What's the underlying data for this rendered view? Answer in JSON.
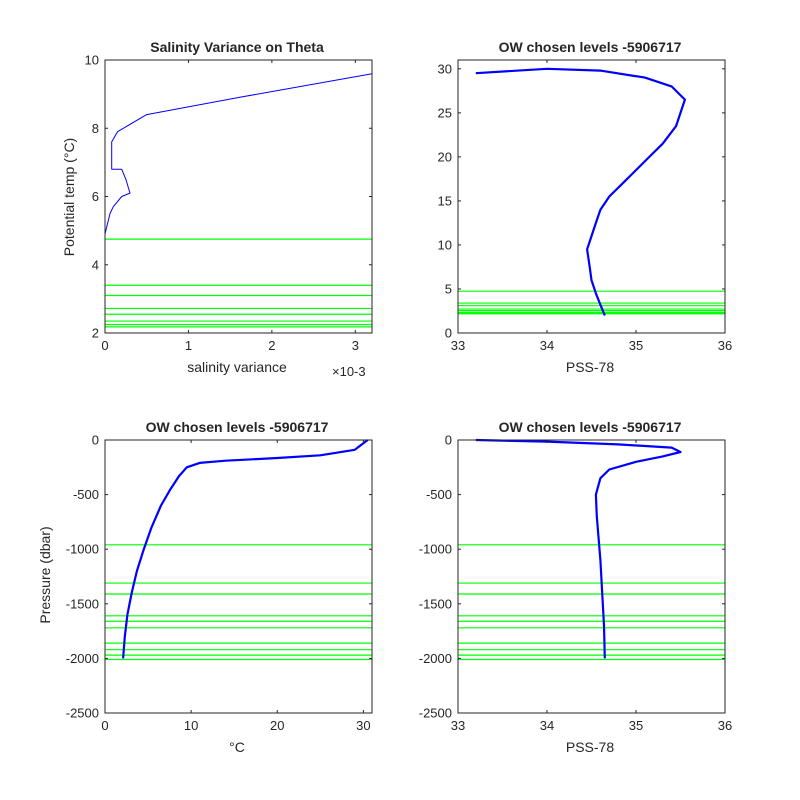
{
  "colors": {
    "profile": "#0000ff",
    "level": "#00ff00",
    "axis": "#262626"
  },
  "chart_data": [
    {
      "type": "line",
      "title": "Salinity Variance on Theta",
      "xlabel": "salinity variance",
      "ylabel": "Potential temp (°C)",
      "x_exponent": "×10-3",
      "xlim": [
        0,
        3.2
      ],
      "ylim": [
        2,
        10
      ],
      "xticks": [
        0,
        1,
        2,
        3
      ],
      "yticks": [
        2,
        4,
        6,
        8,
        10
      ],
      "series": [
        {
          "x": [
            3.2,
            2.4,
            1.6,
            0.5,
            0.15,
            0.08,
            0.08,
            0.2,
            0.25,
            0.3,
            0.2,
            0.1,
            0.06,
            0.03,
            0.0,
            0.0,
            0.0
          ],
          "y": [
            9.6,
            9.25,
            8.9,
            8.4,
            7.9,
            7.6,
            6.8,
            6.8,
            6.5,
            6.1,
            6.0,
            5.7,
            5.5,
            5.2,
            4.9,
            3.0,
            2.0
          ]
        }
      ],
      "levels": [
        4.75,
        3.4,
        3.1,
        2.72,
        2.55,
        2.35,
        2.25,
        2.18
      ]
    },
    {
      "type": "line",
      "title": "OW chosen levels -5906717",
      "xlabel": "PSS-78",
      "ylabel": "",
      "xlim": [
        33,
        36
      ],
      "ylim": [
        0,
        31
      ],
      "xticks": [
        33,
        34,
        35,
        36
      ],
      "yticks": [
        0,
        5,
        10,
        15,
        20,
        25,
        30
      ],
      "series": [
        {
          "x": [
            34.65,
            34.6,
            34.55,
            34.5,
            34.48,
            34.45,
            34.5,
            34.55,
            34.6,
            34.7,
            34.85,
            35.0,
            35.15,
            35.3,
            35.45,
            35.55,
            35.4,
            35.1,
            34.6,
            34.0,
            33.2
          ],
          "y": [
            2.0,
            3.2,
            4.5,
            6.0,
            7.5,
            9.5,
            11.0,
            12.5,
            14.0,
            15.5,
            17.0,
            18.5,
            20.0,
            21.5,
            23.5,
            26.5,
            28.0,
            29.0,
            29.8,
            30.0,
            29.5
          ]
        }
      ],
      "levels": [
        4.75,
        3.4,
        3.1,
        2.72,
        2.55,
        2.35,
        2.25,
        2.18
      ]
    },
    {
      "type": "line",
      "title": "OW chosen levels -5906717",
      "xlabel": "°C",
      "ylabel": "Pressure (dbar)",
      "xlim": [
        0,
        31
      ],
      "ylim": [
        -2500,
        0
      ],
      "xticks": [
        0,
        10,
        20,
        30
      ],
      "yticks": [
        -2500,
        -2000,
        -1500,
        -1000,
        -500,
        0
      ],
      "series": [
        {
          "x": [
            2.1,
            2.3,
            2.6,
            3.1,
            3.7,
            4.5,
            5.4,
            6.5,
            7.6,
            8.6,
            9.5,
            11.0,
            14.0,
            20.0,
            25.0,
            29.0,
            30.5
          ],
          "y": [
            -2000,
            -1800,
            -1600,
            -1400,
            -1200,
            -1000,
            -800,
            -600,
            -450,
            -330,
            -250,
            -210,
            -190,
            -165,
            -140,
            -90,
            0
          ]
        }
      ],
      "levels": [
        -960,
        -1310,
        -1410,
        -1610,
        -1660,
        -1720,
        -1860,
        -1920,
        -1970,
        -2010
      ]
    },
    {
      "type": "line",
      "title": "OW chosen levels -5906717",
      "xlabel": "PSS-78",
      "ylabel": "",
      "xlim": [
        33,
        36
      ],
      "ylim": [
        -2500,
        0
      ],
      "xticks": [
        33,
        34,
        35,
        36
      ],
      "yticks": [
        -2500,
        -2000,
        -1500,
        -1000,
        -500,
        0
      ],
      "series": [
        {
          "x": [
            34.65,
            34.64,
            34.62,
            34.6,
            34.58,
            34.56,
            34.55,
            34.6,
            34.7,
            35.0,
            35.3,
            35.5,
            35.4,
            34.8,
            34.0,
            33.2
          ],
          "y": [
            -2000,
            -1700,
            -1400,
            -1100,
            -900,
            -700,
            -500,
            -350,
            -270,
            -200,
            -150,
            -110,
            -70,
            -40,
            -15,
            0
          ]
        }
      ],
      "levels": [
        -960,
        -1310,
        -1410,
        -1610,
        -1660,
        -1720,
        -1860,
        -1920,
        -1970,
        -2010
      ]
    }
  ]
}
